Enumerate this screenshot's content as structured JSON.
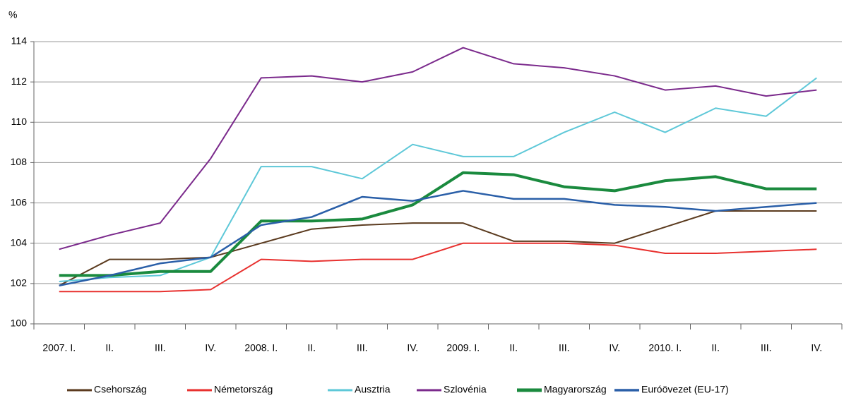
{
  "chart_data": {
    "type": "line",
    "y_label": "%",
    "categories": [
      "2007. I.",
      "II.",
      "III.",
      "IV.",
      "2008. I.",
      "II.",
      "III.",
      "IV.",
      "2009. I.",
      "II.",
      "III.",
      "IV.",
      "2010. I.",
      "II.",
      "III.",
      "IV."
    ],
    "ylim": [
      100,
      114
    ],
    "yticks": [
      100,
      102,
      104,
      106,
      108,
      110,
      112,
      114
    ],
    "grid": true,
    "legend": "bottom",
    "series": [
      {
        "name": "Csehország",
        "color": "#5b3b1f",
        "line_width": 2,
        "values": [
          101.9,
          103.2,
          103.2,
          103.3,
          104.0,
          104.7,
          104.9,
          105.0,
          105.0,
          104.1,
          104.1,
          104.0,
          104.8,
          105.6,
          105.6,
          105.6
        ]
      },
      {
        "name": "Németország",
        "color": "#e8312f",
        "line_width": 2,
        "values": [
          101.6,
          101.6,
          101.6,
          101.7,
          103.2,
          103.1,
          103.2,
          103.2,
          104.0,
          104.0,
          104.0,
          103.9,
          103.5,
          103.5,
          103.6,
          103.7
        ]
      },
      {
        "name": "Ausztria",
        "color": "#5ec8d8",
        "line_width": 2,
        "values": [
          102.1,
          102.3,
          102.4,
          103.3,
          107.8,
          107.8,
          107.2,
          108.9,
          108.3,
          108.3,
          109.5,
          110.5,
          109.5,
          110.7,
          110.3,
          112.2
        ]
      },
      {
        "name": "Szlovénia",
        "color": "#7b2a8c",
        "line_width": 2,
        "values": [
          103.7,
          104.4,
          105.0,
          108.2,
          112.2,
          112.3,
          112.0,
          112.5,
          113.7,
          112.9,
          112.7,
          112.3,
          111.6,
          111.8,
          111.3,
          111.6
        ]
      },
      {
        "name": "Magyarország",
        "color": "#1a8a3e",
        "line_width": 4,
        "values": [
          102.4,
          102.4,
          102.6,
          102.6,
          105.1,
          105.1,
          105.2,
          105.9,
          107.5,
          107.4,
          106.8,
          106.6,
          107.1,
          107.3,
          106.7,
          106.7
        ]
      },
      {
        "name": "Euróövezet (EU-17)",
        "color": "#2a5fa8",
        "line_width": 2.5,
        "values": [
          101.9,
          102.4,
          103.0,
          103.3,
          104.9,
          105.3,
          106.3,
          106.1,
          106.6,
          106.2,
          106.2,
          105.9,
          105.8,
          105.6,
          105.8,
          106.0
        ]
      }
    ]
  }
}
